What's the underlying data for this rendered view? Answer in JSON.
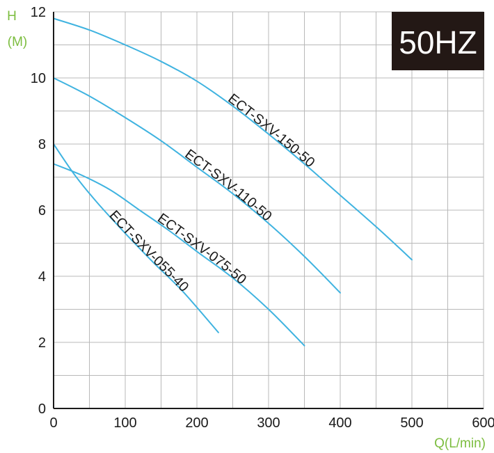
{
  "chart_data": {
    "type": "line",
    "badge": "50HZ",
    "ylabel": "H",
    "yunit": "(M)",
    "xlabel": "Q(L/min)",
    "xlim": [
      0,
      600
    ],
    "ylim": [
      0,
      12
    ],
    "x_ticks": [
      0,
      100,
      200,
      300,
      400,
      500,
      600
    ],
    "y_ticks": [
      0,
      2,
      4,
      6,
      8,
      10,
      12
    ],
    "grid": true,
    "colors": {
      "curve": "#3fb3e0",
      "grid": "#b8b8b8",
      "axis": "#1a1a1a",
      "axis_label": "#7cbd3f",
      "badge_bg": "#231815",
      "badge_text": "#ffffff"
    },
    "series": [
      {
        "name": "ECT-SXV-150-50",
        "points": [
          [
            0,
            11.8
          ],
          [
            50,
            11.45
          ],
          [
            100,
            11.0
          ],
          [
            150,
            10.5
          ],
          [
            200,
            9.9
          ],
          [
            250,
            9.15
          ],
          [
            300,
            8.3
          ],
          [
            350,
            7.4
          ],
          [
            400,
            6.45
          ],
          [
            450,
            5.5
          ],
          [
            500,
            4.5
          ]
        ]
      },
      {
        "name": "ECT-SXV-110-50",
        "points": [
          [
            0,
            10.0
          ],
          [
            50,
            9.45
          ],
          [
            100,
            8.8
          ],
          [
            150,
            8.1
          ],
          [
            200,
            7.3
          ],
          [
            250,
            6.5
          ],
          [
            300,
            5.6
          ],
          [
            350,
            4.6
          ],
          [
            400,
            3.5
          ]
        ]
      },
      {
        "name": "ECT-SXV-075-50",
        "points": [
          [
            0,
            7.4
          ],
          [
            40,
            7.05
          ],
          [
            80,
            6.6
          ],
          [
            120,
            6.0
          ],
          [
            160,
            5.4
          ],
          [
            200,
            4.75
          ],
          [
            250,
            3.95
          ],
          [
            300,
            3.0
          ],
          [
            350,
            1.9
          ]
        ]
      },
      {
        "name": "ECT-SXV-055-40",
        "points": [
          [
            0,
            8.0
          ],
          [
            30,
            7.05
          ],
          [
            60,
            6.25
          ],
          [
            100,
            5.3
          ],
          [
            140,
            4.4
          ],
          [
            180,
            3.55
          ],
          [
            230,
            2.3
          ]
        ]
      }
    ]
  }
}
